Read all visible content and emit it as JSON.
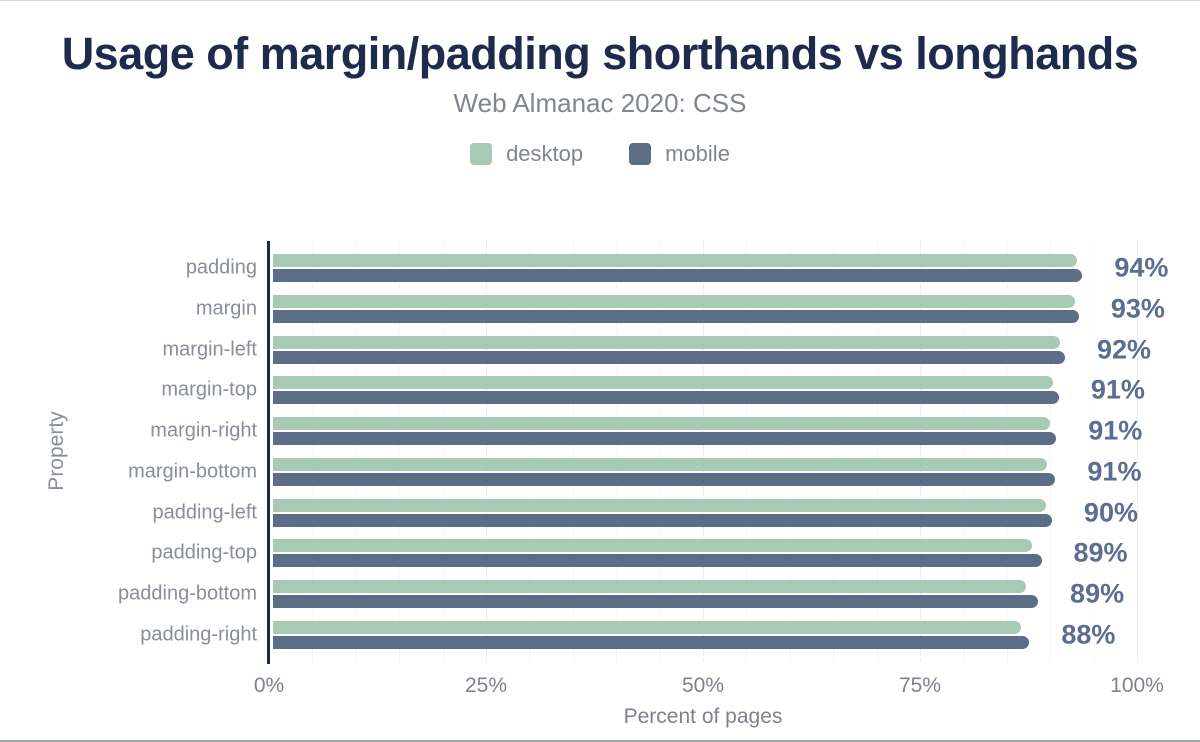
{
  "title": "Usage of margin/padding shorthands vs longhands",
  "subtitle": "Web Almanac 2020: CSS",
  "legend": {
    "items": [
      {
        "label": "desktop",
        "color": "#a8c9b4"
      },
      {
        "label": "mobile",
        "color": "#5c6d88"
      }
    ]
  },
  "colors": {
    "desktop_bar": "#a8c9b4",
    "mobile_bar": "#5c6d88",
    "value_label": "#5b6d90",
    "title_text": "#1e2b4d",
    "axis_line": "#1b2b49",
    "muted_text": "#80858e"
  },
  "chart_data": {
    "type": "bar",
    "orientation": "horizontal",
    "title": "Usage of margin/padding shorthands vs longhands",
    "subtitle": "Web Almanac 2020: CSS",
    "categories": [
      "padding",
      "margin",
      "margin-left",
      "margin-top",
      "margin-right",
      "margin-bottom",
      "padding-left",
      "padding-top",
      "padding-bottom",
      "padding-right"
    ],
    "series": [
      {
        "name": "desktop",
        "color": "#a8c9b4",
        "values": [
          93.1,
          92.8,
          91.1,
          90.3,
          90.0,
          89.6,
          89.5,
          87.9,
          87.2,
          86.6
        ]
      },
      {
        "name": "mobile",
        "color": "#5c6d88",
        "values": [
          93.7,
          93.3,
          91.7,
          91.0,
          90.7,
          90.6,
          90.2,
          89.0,
          88.6,
          87.6
        ]
      }
    ],
    "value_labels": [
      "94%",
      "93%",
      "92%",
      "91%",
      "91%",
      "91%",
      "90%",
      "89%",
      "89%",
      "88%"
    ],
    "xlabel": "Percent of pages",
    "ylabel": "Property",
    "xlim": [
      0,
      100
    ],
    "x_ticks": [
      {
        "value": 0,
        "label": "0%"
      },
      {
        "value": 25,
        "label": "25%"
      },
      {
        "value": 50,
        "label": "50%"
      },
      {
        "value": 75,
        "label": "75%"
      },
      {
        "value": 100,
        "label": "100%"
      }
    ],
    "grid": "vertical dotted lines every 5%, darker every 25%",
    "legend_position": "top"
  }
}
